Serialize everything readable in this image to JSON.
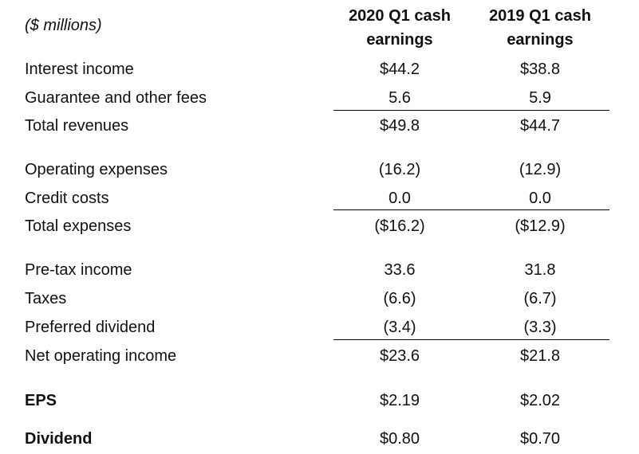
{
  "table": {
    "unit_label": "($ millions)",
    "col1_header_line1": "2020 Q1 cash",
    "col1_header_line2": "earnings",
    "col2_header_line1": "2019 Q1 cash",
    "col2_header_line2": "earnings",
    "rows": [
      {
        "label": "Interest income",
        "v2020": "$44.2",
        "v2019": "$38.8"
      },
      {
        "label": "Guarantee and other fees",
        "v2020": "5.6",
        "v2019": "5.9"
      },
      {
        "label": "Total revenues",
        "v2020": "$49.8",
        "v2019": "$44.7"
      },
      {
        "label": "Operating expenses",
        "v2020": "(16.2)",
        "v2019": "(12.9)"
      },
      {
        "label": "Credit costs",
        "v2020": "0.0",
        "v2019": "0.0"
      },
      {
        "label": "Total expenses",
        "v2020": "($16.2)",
        "v2019": "($12.9)"
      },
      {
        "label": "Pre-tax income",
        "v2020": "33.6",
        "v2019": "31.8"
      },
      {
        "label": "Taxes",
        "v2020": "(6.6)",
        "v2019": "(6.7)"
      },
      {
        "label": "Preferred dividend",
        "v2020": "(3.4)",
        "v2019": "(3.3)"
      },
      {
        "label": "Net operating income",
        "v2020": "$23.6",
        "v2019": "$21.8"
      },
      {
        "label": "EPS",
        "v2020": "$2.19",
        "v2019": "$2.02"
      },
      {
        "label": "Dividend",
        "v2020": "$0.80",
        "v2019": "$0.70"
      }
    ]
  }
}
